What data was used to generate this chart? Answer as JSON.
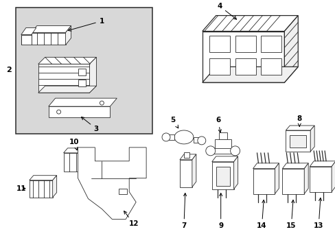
{
  "bg_color": "#ffffff",
  "line_color": "#2a2a2a",
  "gray_fill": "#d8d8d8",
  "light_fill": "#f0f0f0",
  "fig_width": 4.89,
  "fig_height": 3.6,
  "dpi": 100
}
